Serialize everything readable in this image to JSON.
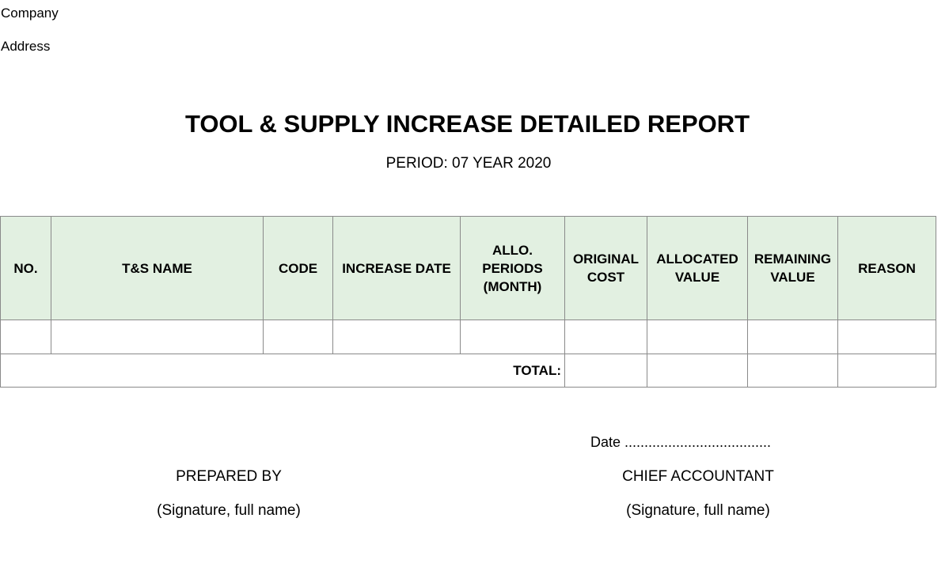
{
  "header": {
    "company": "Company",
    "address": "Address",
    "title": "TOOL & SUPPLY INCREASE DETAILED REPORT",
    "period": "PERIOD: 07 YEAR 2020"
  },
  "table": {
    "columns": [
      "NO.",
      "T&S NAME",
      "CODE",
      "INCREASE DATE",
      "ALLO. PERIODS (MONTH)",
      "ORIGINAL COST",
      "ALLOCATED VALUE",
      "REMAINING VALUE",
      "REASON"
    ],
    "rows": [
      [
        "",
        "",
        "",
        "",
        "",
        "",
        "",
        "",
        ""
      ]
    ],
    "total_label": "TOTAL:",
    "totals": [
      "",
      "",
      "",
      ""
    ]
  },
  "footer": {
    "date_line": "Date .....................................",
    "prepared_by": "PREPARED BY",
    "prepared_signature": "(Signature, full name)",
    "chief_accountant": "CHIEF ACCOUNTANT",
    "chief_signature": "(Signature, full name)"
  }
}
